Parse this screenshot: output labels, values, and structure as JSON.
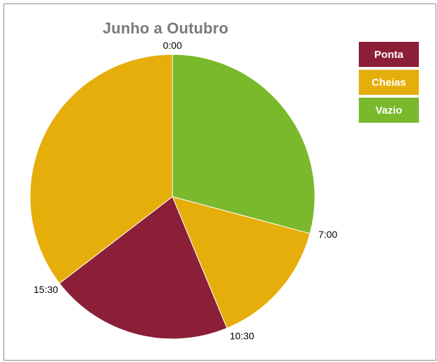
{
  "chart_data": {
    "type": "pie",
    "title": "Junho a Outubro",
    "slices": [
      {
        "series": "Vazio",
        "start_time": "0:00",
        "end_time": "7:00",
        "hours": 7.0
      },
      {
        "series": "Cheias",
        "start_time": "7:00",
        "end_time": "10:30",
        "hours": 3.5
      },
      {
        "series": "Ponta",
        "start_time": "10:30",
        "end_time": "15:30",
        "hours": 5.0
      },
      {
        "series": "Cheias",
        "start_time": "15:30",
        "end_time": "0:00",
        "hours": 8.5
      }
    ],
    "time_labels": [
      "0:00",
      "7:00",
      "10:30",
      "15:30"
    ],
    "legend": {
      "placement": "top-right",
      "entries": [
        "Ponta",
        "Cheias",
        "Vazio"
      ]
    },
    "colors": {
      "Ponta": "#8b1f38",
      "Cheias": "#e6ae0b",
      "Vazio": "#7ab92c"
    }
  }
}
